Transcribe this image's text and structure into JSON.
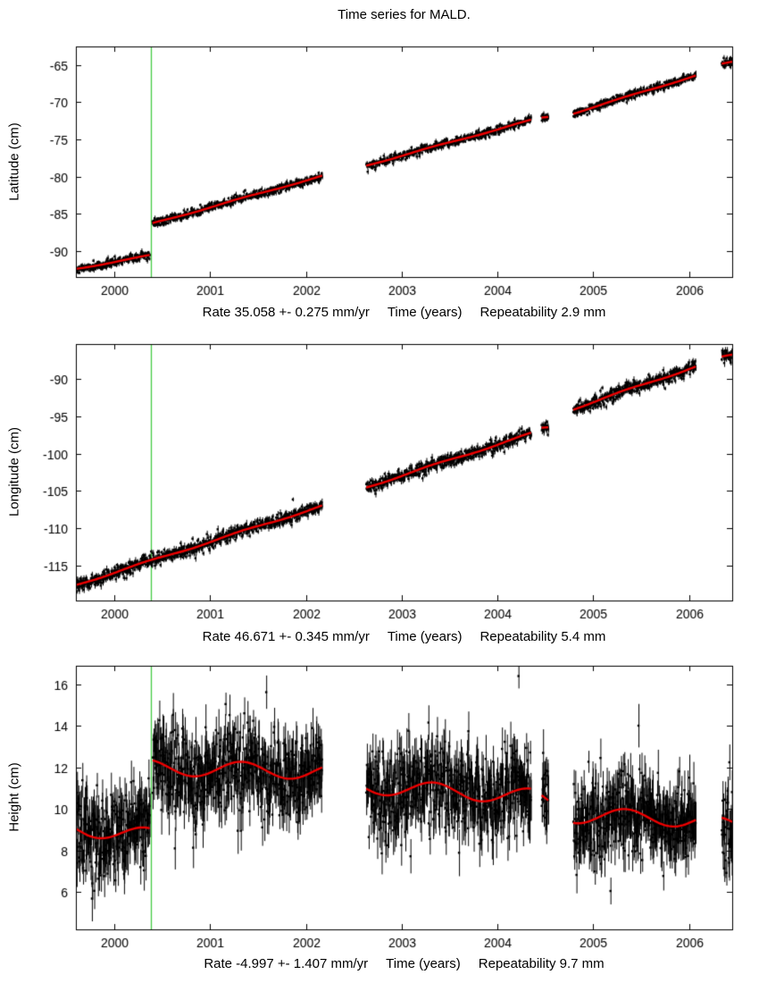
{
  "title": "Time series for MALD.",
  "colors": {
    "background": "#ffffff",
    "points": "#000000",
    "model": "#ee0000",
    "event_line": "#44cb44",
    "axis": "#000000"
  },
  "chart_data": [
    {
      "type": "scatter",
      "ylabel": "Latitude (cm)",
      "xlabel": "Time (years)",
      "rate_label": "Rate 35.058 +- 0.275 mm/yr",
      "repeatability_label": "Repeatability 2.9 mm",
      "xlim": [
        1999.6,
        2006.45
      ],
      "ylim": [
        -93.5,
        -62.5
      ],
      "xticks": [
        2000,
        2001,
        2002,
        2003,
        2004,
        2005,
        2006
      ],
      "yticks": [
        -90,
        -85,
        -80,
        -75,
        -70,
        -65
      ],
      "event_x": 2000.38,
      "points_per_year": 310,
      "noise_cm": 0.27,
      "error_bar_cm": 0.28,
      "seasonal_amp_cm": 0.07,
      "outlier_rate": 0.002,
      "segments": [
        {
          "t0": 1999.6,
          "t1": 2000.37,
          "y0": -92.4,
          "y1": -90.6
        },
        {
          "t0": 2000.4,
          "t1": 2002.17,
          "y0": -86.3,
          "y1": -79.9
        },
        {
          "t0": 2002.63,
          "t1": 2004.35,
          "y0": -78.5,
          "y1": -72.4
        },
        {
          "t0": 2004.46,
          "t1": 2004.53,
          "y0": -72.1,
          "y1": -72.0
        },
        {
          "t0": 2004.79,
          "t1": 2006.07,
          "y0": -71.5,
          "y1": -66.4
        },
        {
          "t0": 2006.34,
          "t1": 2006.45,
          "y0": -64.9,
          "y1": -64.6
        }
      ]
    },
    {
      "type": "scatter",
      "ylabel": "Longitude (cm)",
      "xlabel": "Time (years)",
      "rate_label": "Rate 46.671 +- 0.345 mm/yr",
      "repeatability_label": "Repeatability 5.4 mm",
      "xlim": [
        1999.6,
        2006.45
      ],
      "ylim": [
        -119.7,
        -85.3
      ],
      "xticks": [
        2000,
        2001,
        2002,
        2003,
        2004,
        2005,
        2006
      ],
      "yticks": [
        -115,
        -110,
        -105,
        -100,
        -95,
        -90
      ],
      "event_x": 2000.38,
      "points_per_year": 310,
      "noise_cm": 0.42,
      "error_bar_cm": 0.38,
      "seasonal_amp_cm": 0.12,
      "outlier_rate": 0.005,
      "segments": [
        {
          "t0": 1999.6,
          "t1": 2002.17,
          "y0": -117.6,
          "y1": -107.0
        },
        {
          "t0": 2002.63,
          "t1": 2004.35,
          "y0": -104.5,
          "y1": -97.3
        },
        {
          "t0": 2004.46,
          "t1": 2004.53,
          "y0": -96.6,
          "y1": -96.5
        },
        {
          "t0": 2004.79,
          "t1": 2006.07,
          "y0": -94.0,
          "y1": -88.3
        },
        {
          "t0": 2006.34,
          "t1": 2006.45,
          "y0": -87.1,
          "y1": -86.8
        }
      ]
    },
    {
      "type": "scatter",
      "ylabel": "Height (cm)",
      "xlabel": "Time (years)",
      "rate_label": "Rate -4.997 +- 1.407 mm/yr",
      "repeatability_label": "Repeatability 9.7 mm",
      "xlim": [
        1999.6,
        2006.45
      ],
      "ylim": [
        4.2,
        16.9
      ],
      "xticks": [
        2000,
        2001,
        2002,
        2003,
        2004,
        2005,
        2006
      ],
      "yticks": [
        6,
        8,
        10,
        12,
        14,
        16
      ],
      "event_x": 2000.38,
      "points_per_year": 310,
      "noise_cm": 1.0,
      "error_bar_cm": 0.85,
      "seasonal_amp_cm": 0.38,
      "outlier_rate": 0.007,
      "segments": [
        {
          "t0": 1999.6,
          "t1": 2000.37,
          "y0": 9.1,
          "y1": 8.7
        },
        {
          "t0": 2000.4,
          "t1": 2002.17,
          "y0": 12.0,
          "y1": 11.8
        },
        {
          "t0": 2002.63,
          "t1": 2004.35,
          "y0": 11.1,
          "y1": 10.6
        },
        {
          "t0": 2004.46,
          "t1": 2004.53,
          "y0": 10.4,
          "y1": 10.3
        },
        {
          "t0": 2004.79,
          "t1": 2006.07,
          "y0": 9.7,
          "y1": 9.5
        },
        {
          "t0": 2006.34,
          "t1": 2006.45,
          "y0": 9.2,
          "y1": 9.1,
          "noise_mult": 1.5
        }
      ]
    }
  ]
}
